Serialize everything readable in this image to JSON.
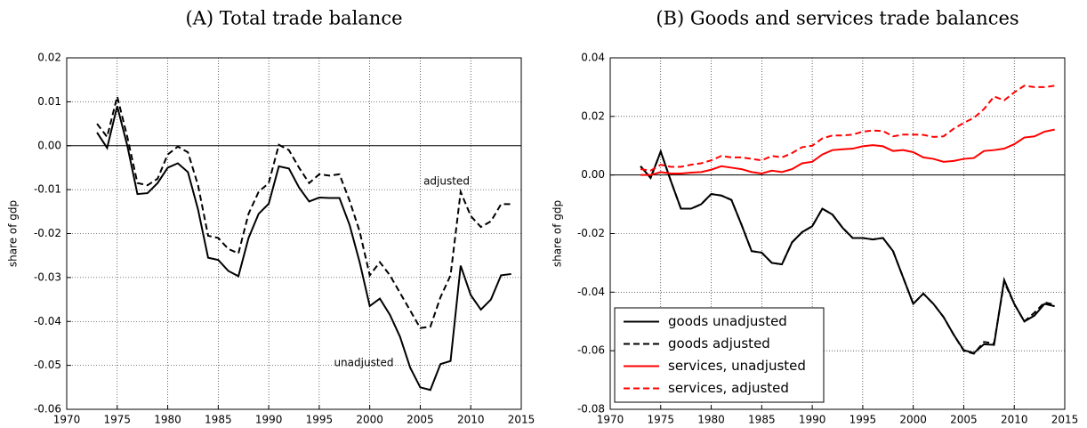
{
  "chart_data": [
    {
      "type": "line",
      "title": "(A) Total trade balance",
      "ylabel": "share of gdp",
      "x": [
        1973,
        1974,
        1975,
        1976,
        1977,
        1978,
        1979,
        1980,
        1981,
        1982,
        1983,
        1984,
        1985,
        1986,
        1987,
        1988,
        1989,
        1990,
        1991,
        1992,
        1993,
        1994,
        1995,
        1996,
        1997,
        1998,
        1999,
        2000,
        2001,
        2002,
        2003,
        2004,
        2005,
        2006,
        2007,
        2008,
        2009,
        2010,
        2011,
        2012,
        2013,
        2014
      ],
      "series": [
        {
          "color": "#000000",
          "linestyle": "solid",
          "values": [
            0.003,
            -0.0005,
            0.009,
            0.0,
            -0.011,
            -0.0108,
            -0.0085,
            -0.005,
            -0.004,
            -0.006,
            -0.0145,
            -0.0255,
            -0.026,
            -0.0285,
            -0.0297,
            -0.021,
            -0.0155,
            -0.0132,
            -0.0047,
            -0.0052,
            -0.0095,
            -0.0127,
            -0.0118,
            -0.0119,
            -0.0119,
            -0.018,
            -0.0265,
            -0.0365,
            -0.0348,
            -0.0385,
            -0.0435,
            -0.0505,
            -0.055,
            -0.0556,
            -0.0497,
            -0.049,
            -0.0273,
            -0.034,
            -0.0373,
            -0.035,
            -0.0295,
            -0.0292
          ]
        },
        {
          "color": "#000000",
          "linestyle": "dashed",
          "values": [
            0.005,
            0.002,
            0.0112,
            0.002,
            -0.0085,
            -0.009,
            -0.0075,
            -0.002,
            -0.0002,
            -0.0015,
            -0.009,
            -0.0205,
            -0.021,
            -0.0235,
            -0.0245,
            -0.0155,
            -0.0105,
            -0.0085,
            0.0002,
            -0.001,
            -0.005,
            -0.0085,
            -0.0065,
            -0.0068,
            -0.0065,
            -0.0125,
            -0.0195,
            -0.0295,
            -0.0265,
            -0.0295,
            -0.0335,
            -0.0375,
            -0.0415,
            -0.0412,
            -0.0345,
            -0.0295,
            -0.0105,
            -0.016,
            -0.0185,
            -0.0172,
            -0.0133,
            -0.0133
          ]
        }
      ],
      "annotations": [
        "adjusted",
        "unadjusted"
      ],
      "xlim": [
        1970,
        2015
      ],
      "xticks": [
        1970,
        1975,
        1980,
        1985,
        1990,
        1995,
        2000,
        2005,
        2010,
        2015
      ],
      "ylim": [
        -0.06,
        0.02
      ],
      "yticks": [
        -0.06,
        -0.05,
        -0.04,
        -0.03,
        -0.02,
        -0.01,
        {
          "value": 0,
          "label": "0.00"
        },
        0.01,
        0.02
      ],
      "grid": true
    },
    {
      "type": "line",
      "title": "(B) Goods and services trade balances",
      "ylabel": "share of gdp",
      "x": [
        1973,
        1974,
        1975,
        1976,
        1977,
        1978,
        1979,
        1980,
        1981,
        1982,
        1983,
        1984,
        1985,
        1986,
        1987,
        1988,
        1989,
        1990,
        1991,
        1992,
        1993,
        1994,
        1995,
        1996,
        1997,
        1998,
        1999,
        2000,
        2001,
        2002,
        2003,
        2004,
        2005,
        2006,
        2007,
        2008,
        2009,
        2010,
        2011,
        2012,
        2013,
        2014
      ],
      "series": [
        {
          "name": "goods unadjusted",
          "color": "#000000",
          "linestyle": "solid",
          "values": [
            0.003,
            -0.001,
            0.008,
            -0.002,
            -0.0115,
            -0.0115,
            -0.01,
            -0.0065,
            -0.007,
            -0.0085,
            -0.017,
            -0.026,
            -0.0265,
            -0.03,
            -0.0305,
            -0.023,
            -0.0195,
            -0.0175,
            -0.0115,
            -0.0135,
            -0.018,
            -0.0215,
            -0.0215,
            -0.022,
            -0.0215,
            -0.026,
            -0.035,
            -0.044,
            -0.0405,
            -0.044,
            -0.0485,
            -0.0545,
            -0.0598,
            -0.0608,
            -0.0578,
            -0.058,
            -0.0358,
            -0.044,
            -0.05,
            -0.048,
            -0.044,
            -0.0448
          ]
        },
        {
          "name": "goods adjusted",
          "color": "#000000",
          "linestyle": "dashed",
          "values": [
            0.003,
            -0.001,
            0.008,
            -0.002,
            -0.0115,
            -0.0115,
            -0.01,
            -0.0065,
            -0.007,
            -0.0085,
            -0.017,
            -0.026,
            -0.0265,
            -0.03,
            -0.0305,
            -0.023,
            -0.0195,
            -0.0175,
            -0.0115,
            -0.0135,
            -0.018,
            -0.0215,
            -0.0215,
            -0.022,
            -0.0215,
            -0.026,
            -0.035,
            -0.044,
            -0.0405,
            -0.044,
            -0.0485,
            -0.0545,
            -0.06,
            -0.061,
            -0.057,
            -0.0575,
            -0.0365,
            -0.044,
            -0.05,
            -0.047,
            -0.0435,
            -0.0443
          ]
        },
        {
          "name": "services, unadjusted",
          "color": "#ff0000",
          "linestyle": "solid",
          "values": [
            0.0,
            0.0,
            0.001,
            0.0005,
            0.0005,
            0.0008,
            0.001,
            0.0018,
            0.003,
            0.0025,
            0.002,
            0.001,
            0.0005,
            0.0015,
            0.001,
            0.002,
            0.004,
            0.0045,
            0.007,
            0.0085,
            0.0088,
            0.009,
            0.0098,
            0.0102,
            0.0098,
            0.0082,
            0.0085,
            0.0078,
            0.006,
            0.0055,
            0.0045,
            0.0048,
            0.0055,
            0.0058,
            0.0082,
            0.0085,
            0.009,
            0.0105,
            0.0128,
            0.0132,
            0.0148,
            0.0155
          ]
        },
        {
          "name": "services, adjusted",
          "color": "#ff0000",
          "linestyle": "dashed",
          "values": [
            0.002,
            0.0015,
            0.0035,
            0.0028,
            0.0028,
            0.0035,
            0.004,
            0.005,
            0.0065,
            0.006,
            0.006,
            0.0055,
            0.005,
            0.0065,
            0.006,
            0.0075,
            0.0095,
            0.01,
            0.0125,
            0.0135,
            0.0135,
            0.0138,
            0.0148,
            0.0152,
            0.015,
            0.0132,
            0.0138,
            0.0138,
            0.0137,
            0.013,
            0.0132,
            0.0158,
            0.0178,
            0.0195,
            0.0225,
            0.0268,
            0.0255,
            0.0282,
            0.0305,
            0.03,
            0.03,
            0.0305
          ]
        }
      ],
      "legend": "lower left",
      "xlim": [
        1970,
        2015
      ],
      "xticks": [
        1970,
        1975,
        1980,
        1985,
        1990,
        1995,
        2000,
        2005,
        2010,
        2015
      ],
      "ylim": [
        -0.08,
        0.04
      ],
      "yticks": [
        -0.08,
        -0.06,
        -0.04,
        -0.02,
        {
          "value": 0,
          "label": "0.00"
        },
        0.02,
        0.04
      ],
      "grid": true
    }
  ]
}
